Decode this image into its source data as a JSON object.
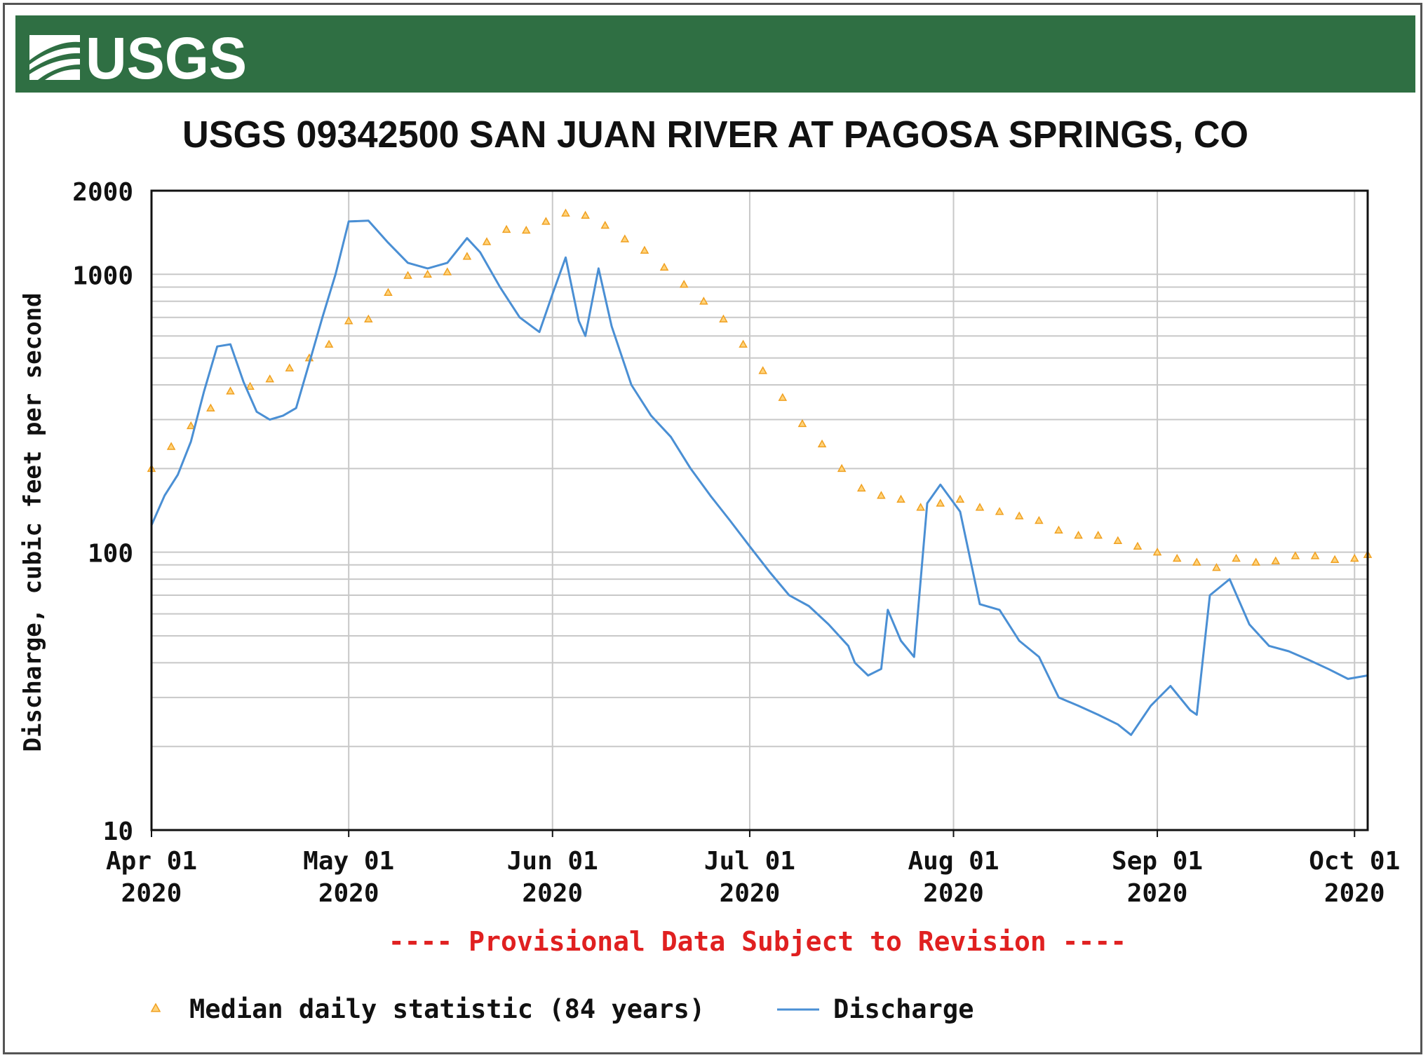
{
  "header": {
    "logo_text": "USGS",
    "banner_color": "#2f6f43"
  },
  "chart_data": {
    "type": "line",
    "title": "USGS 09342500 SAN JUAN RIVER AT PAGOSA SPRINGS, CO",
    "ylabel": "Discharge, cubic feet per second",
    "xlabel": "",
    "yscale": "log",
    "ylim": [
      10,
      2000
    ],
    "xlim": [
      "2020-04-01",
      "2020-10-03"
    ],
    "grid": true,
    "y_ticks": [
      "2000",
      "1000",
      "100",
      "10"
    ],
    "x_ticks": [
      {
        "date": "2020-04-01",
        "line1": "Apr 01",
        "line2": "2020"
      },
      {
        "date": "2020-05-01",
        "line1": "May 01",
        "line2": "2020"
      },
      {
        "date": "2020-06-01",
        "line1": "Jun 01",
        "line2": "2020"
      },
      {
        "date": "2020-07-01",
        "line1": "Jul 01",
        "line2": "2020"
      },
      {
        "date": "2020-08-01",
        "line1": "Aug 01",
        "line2": "2020"
      },
      {
        "date": "2020-09-01",
        "line1": "Sep 01",
        "line2": "2020"
      },
      {
        "date": "2020-10-01",
        "line1": "Oct 01",
        "line2": "2020"
      }
    ],
    "annotation": "---- Provisional Data Subject to Revision ----",
    "legend_position": "bottom",
    "series": [
      {
        "name": "Median daily statistic (84 years)",
        "style": "points",
        "color": "#f0a020",
        "x": [
          "2020-04-01",
          "2020-04-04",
          "2020-04-07",
          "2020-04-10",
          "2020-04-13",
          "2020-04-16",
          "2020-04-19",
          "2020-04-22",
          "2020-04-25",
          "2020-04-28",
          "2020-05-01",
          "2020-05-04",
          "2020-05-07",
          "2020-05-10",
          "2020-05-13",
          "2020-05-16",
          "2020-05-19",
          "2020-05-22",
          "2020-05-25",
          "2020-05-28",
          "2020-05-31",
          "2020-06-03",
          "2020-06-06",
          "2020-06-09",
          "2020-06-12",
          "2020-06-15",
          "2020-06-18",
          "2020-06-21",
          "2020-06-24",
          "2020-06-27",
          "2020-06-30",
          "2020-07-03",
          "2020-07-06",
          "2020-07-09",
          "2020-07-12",
          "2020-07-15",
          "2020-07-18",
          "2020-07-21",
          "2020-07-24",
          "2020-07-27",
          "2020-07-30",
          "2020-08-02",
          "2020-08-05",
          "2020-08-08",
          "2020-08-11",
          "2020-08-14",
          "2020-08-17",
          "2020-08-20",
          "2020-08-23",
          "2020-08-26",
          "2020-08-29",
          "2020-09-01",
          "2020-09-04",
          "2020-09-07",
          "2020-09-10",
          "2020-09-13",
          "2020-09-16",
          "2020-09-19",
          "2020-09-22",
          "2020-09-25",
          "2020-09-28",
          "2020-10-01",
          "2020-10-03"
        ],
        "values": [
          200,
          240,
          285,
          330,
          380,
          395,
          420,
          460,
          500,
          560,
          680,
          690,
          860,
          990,
          1000,
          1020,
          1160,
          1310,
          1450,
          1440,
          1550,
          1660,
          1630,
          1500,
          1340,
          1220,
          1060,
          920,
          800,
          690,
          560,
          450,
          360,
          290,
          245,
          200,
          170,
          160,
          155,
          145,
          150,
          155,
          145,
          140,
          135,
          130,
          120,
          115,
          115,
          110,
          105,
          100,
          95,
          92,
          88,
          95,
          92,
          93,
          97,
          97,
          94,
          95,
          98
        ]
      },
      {
        "name": "Discharge",
        "style": "line",
        "color": "#4a8fd4",
        "x": [
          "2020-04-01",
          "2020-04-03",
          "2020-04-05",
          "2020-04-07",
          "2020-04-09",
          "2020-04-11",
          "2020-04-13",
          "2020-04-15",
          "2020-04-17",
          "2020-04-19",
          "2020-04-21",
          "2020-04-23",
          "2020-04-25",
          "2020-04-27",
          "2020-04-29",
          "2020-05-01",
          "2020-05-04",
          "2020-05-07",
          "2020-05-10",
          "2020-05-13",
          "2020-05-16",
          "2020-05-19",
          "2020-05-21",
          "2020-05-24",
          "2020-05-27",
          "2020-05-30",
          "2020-06-01",
          "2020-06-03",
          "2020-06-05",
          "2020-06-06",
          "2020-06-08",
          "2020-06-10",
          "2020-06-13",
          "2020-06-16",
          "2020-06-19",
          "2020-06-22",
          "2020-06-25",
          "2020-06-28",
          "2020-07-01",
          "2020-07-04",
          "2020-07-07",
          "2020-07-10",
          "2020-07-13",
          "2020-07-16",
          "2020-07-17",
          "2020-07-19",
          "2020-07-21",
          "2020-07-22",
          "2020-07-24",
          "2020-07-26",
          "2020-07-28",
          "2020-07-30",
          "2020-08-02",
          "2020-08-05",
          "2020-08-08",
          "2020-08-11",
          "2020-08-14",
          "2020-08-17",
          "2020-08-20",
          "2020-08-23",
          "2020-08-26",
          "2020-08-28",
          "2020-08-31",
          "2020-09-03",
          "2020-09-06",
          "2020-09-07",
          "2020-09-09",
          "2020-09-12",
          "2020-09-15",
          "2020-09-18",
          "2020-09-21",
          "2020-09-24",
          "2020-09-27",
          "2020-09-30",
          "2020-10-03"
        ],
        "values": [
          125,
          160,
          190,
          250,
          380,
          550,
          560,
          410,
          320,
          300,
          310,
          330,
          480,
          700,
          1000,
          1550,
          1560,
          1300,
          1100,
          1050,
          1100,
          1350,
          1200,
          900,
          700,
          620,
          850,
          1150,
          680,
          600,
          1050,
          650,
          400,
          310,
          260,
          200,
          160,
          130,
          105,
          85,
          70,
          64,
          55,
          46,
          40,
          36,
          38,
          62,
          48,
          42,
          150,
          175,
          140,
          65,
          62,
          48,
          42,
          30,
          28,
          26,
          24,
          22,
          28,
          33,
          27,
          26,
          70,
          80,
          55,
          46,
          44,
          41,
          38,
          35,
          36
        ]
      }
    ]
  }
}
